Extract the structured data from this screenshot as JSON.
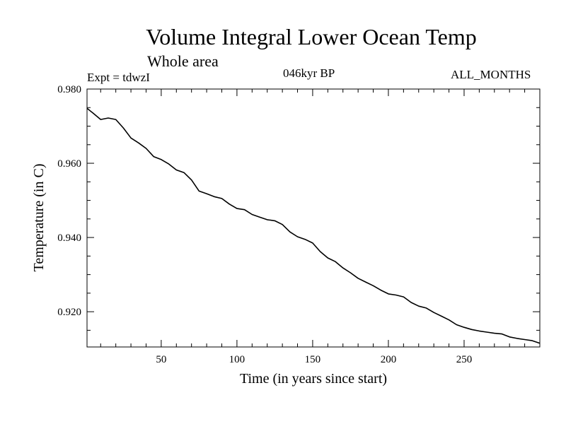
{
  "header": {
    "title": "Volume Integral Lower Ocean Temp",
    "subtitle": "Whole area",
    "experiment": "Expt = tdwzI",
    "period": "046kyr BP",
    "months": "ALL_MONTHS"
  },
  "chart_data": {
    "type": "line",
    "xlabel": "Time (in years since start)",
    "ylabel": "Temperature (in C)",
    "xlim": [
      1,
      300
    ],
    "ylim": [
      0.9105,
      0.98
    ],
    "x_ticks": [
      50,
      100,
      150,
      200,
      250
    ],
    "y_ticks": [
      0.92,
      0.94,
      0.96,
      0.98
    ],
    "y_tick_labels": [
      "0.920",
      "0.940",
      "0.960",
      "0.980"
    ],
    "grid": false,
    "series": [
      {
        "x": [
          1,
          5,
          10,
          15,
          20,
          25,
          30,
          35,
          40,
          45,
          50,
          55,
          60,
          65,
          70,
          75,
          80,
          85,
          90,
          95,
          100,
          105,
          110,
          115,
          120,
          125,
          130,
          135,
          140,
          145,
          150,
          155,
          160,
          165,
          170,
          175,
          180,
          185,
          190,
          195,
          200,
          205,
          210,
          215,
          220,
          225,
          230,
          235,
          240,
          245,
          250,
          255,
          260,
          265,
          270,
          275,
          280,
          285,
          290,
          295,
          300
        ],
        "values": [
          0.9748,
          0.9735,
          0.9718,
          0.9722,
          0.9718,
          0.9695,
          0.9668,
          0.9655,
          0.964,
          0.9618,
          0.961,
          0.9598,
          0.9582,
          0.9575,
          0.9555,
          0.9525,
          0.9518,
          0.951,
          0.9505,
          0.949,
          0.9478,
          0.9475,
          0.9462,
          0.9455,
          0.9448,
          0.9445,
          0.9435,
          0.9415,
          0.9402,
          0.9395,
          0.9385,
          0.9362,
          0.9345,
          0.9335,
          0.9318,
          0.9305,
          0.929,
          0.928,
          0.927,
          0.9258,
          0.9248,
          0.9245,
          0.924,
          0.9225,
          0.9215,
          0.921,
          0.9198,
          0.9188,
          0.9178,
          0.9165,
          0.9158,
          0.9152,
          0.9148,
          0.9145,
          0.9142,
          0.914,
          0.9132,
          0.9128,
          0.9125,
          0.9122,
          0.9115
        ]
      }
    ]
  }
}
